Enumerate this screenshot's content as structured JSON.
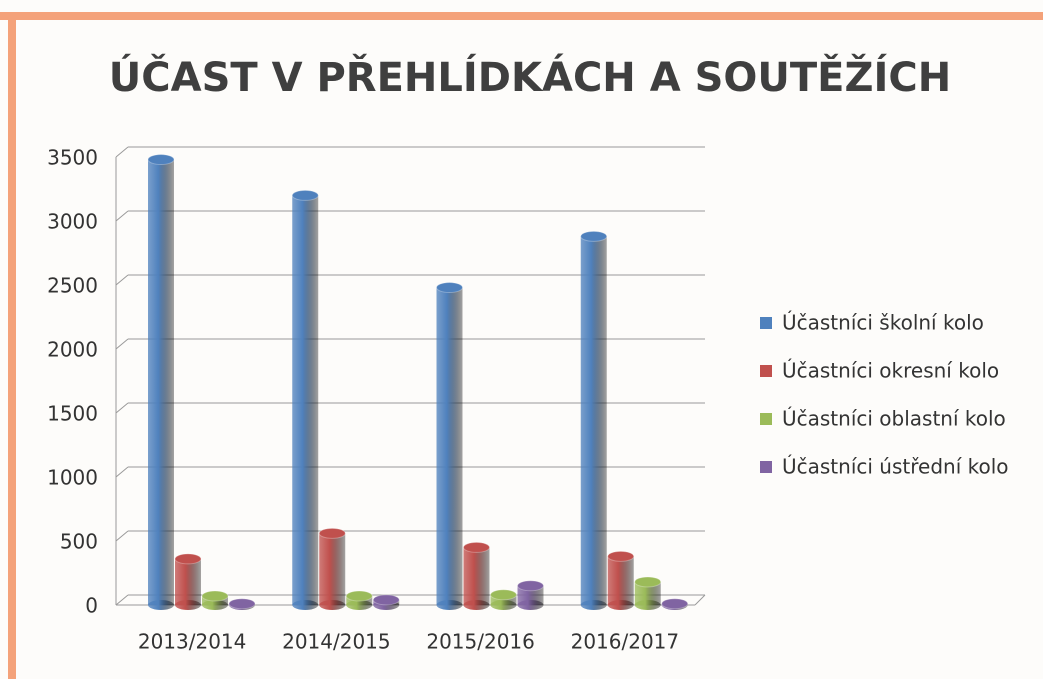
{
  "chart_data": {
    "type": "bar3d",
    "title": "ÚČAST V PŘEHLÍDKÁCH A SOUTĚŽÍCH",
    "categories": [
      "2013/2014",
      "2014/2015",
      "2015/2016",
      "2016/2017"
    ],
    "series": [
      {
        "name": "Účastníci školní kolo",
        "color": "#4f81bd",
        "values": [
          3480,
          3200,
          2480,
          2880
        ]
      },
      {
        "name": "Účastníci okresní kolo",
        "color": "#c0504d",
        "values": [
          360,
          560,
          450,
          380
        ]
      },
      {
        "name": "Účastníci oblastní kolo",
        "color": "#9bbb59",
        "values": [
          70,
          70,
          80,
          180
        ]
      },
      {
        "name": "Účastníci ústřední kolo",
        "color": "#8064a2",
        "values": [
          10,
          40,
          150,
          10
        ]
      }
    ],
    "ylim": [
      0,
      3500
    ],
    "yticks": [
      0,
      500,
      1000,
      1500,
      2000,
      2500,
      3000,
      3500
    ],
    "grid": true,
    "legend": "right"
  }
}
